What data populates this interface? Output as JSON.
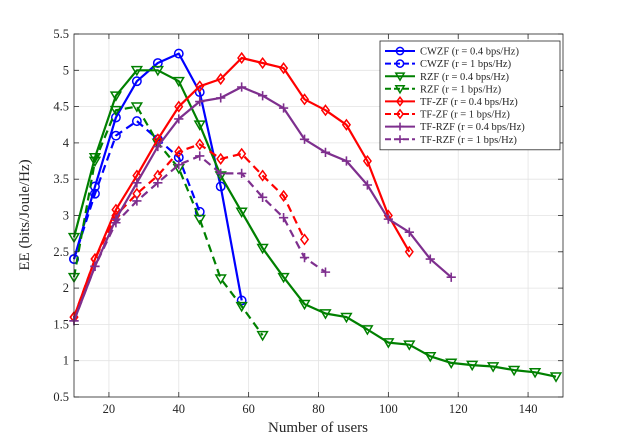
{
  "chart_data": {
    "type": "line",
    "title": "",
    "xlabel": "Number of users",
    "ylabel": "EE (bits/Joule/Hz)",
    "xlim": [
      10,
      150
    ],
    "ylim": [
      0.5,
      5.5
    ],
    "xticks": [
      20,
      40,
      60,
      80,
      100,
      120,
      140
    ],
    "xtick_labels": [
      "20",
      "40",
      "60",
      "80",
      "100",
      "120",
      "140"
    ],
    "yticks": [
      0.5,
      1,
      1.5,
      2,
      2.5,
      3,
      3.5,
      4,
      4.5,
      5,
      5.5
    ],
    "ytick_labels": [
      "0.5",
      "1",
      "1.5",
      "2",
      "2.5",
      "3",
      "3.5",
      "4",
      "4.5",
      "5",
      "5.5"
    ],
    "grid": true,
    "legend_position": "top-right",
    "series": [
      {
        "name": "CWZF (r = 0.4 bps/Hz)",
        "color": "#0000ff",
        "dash": "solid",
        "marker": "circle",
        "x": [
          10,
          16,
          22,
          28,
          34,
          40,
          46,
          52,
          58
        ],
        "y": [
          2.4,
          3.4,
          4.35,
          4.85,
          5.1,
          5.23,
          4.7,
          3.4,
          1.83
        ]
      },
      {
        "name": "CWZF (r = 1 bps/Hz)",
        "color": "#0000ff",
        "dash": "dashed",
        "marker": "circle",
        "x": [
          10,
          16,
          22,
          28,
          34,
          40,
          46
        ],
        "y": [
          2.4,
          3.3,
          4.1,
          4.3,
          4.05,
          3.8,
          3.05
        ]
      },
      {
        "name": "RZF (r = 0.4 bps/Hz)",
        "color": "#008000",
        "dash": "solid",
        "marker": "triangle-down",
        "x": [
          10,
          16,
          22,
          28,
          34,
          40,
          46,
          52,
          58,
          64,
          70,
          76,
          82,
          88,
          94,
          100,
          106,
          112,
          118,
          124,
          130,
          136,
          142,
          148
        ],
        "y": [
          2.7,
          3.8,
          4.65,
          5.0,
          5.0,
          4.85,
          4.25,
          3.55,
          3.05,
          2.55,
          2.15,
          1.78,
          1.65,
          1.6,
          1.43,
          1.25,
          1.22,
          1.06,
          0.97,
          0.94,
          0.92,
          0.87,
          0.84,
          0.78
        ]
      },
      {
        "name": "RZF (r = 1 bps/Hz)",
        "color": "#008000",
        "dash": "dashed",
        "marker": "triangle-down",
        "x": [
          10,
          16,
          22,
          28,
          34,
          40,
          46,
          52,
          58,
          64
        ],
        "y": [
          2.15,
          3.75,
          4.45,
          4.5,
          4.0,
          3.65,
          2.95,
          2.13,
          1.75,
          1.35
        ]
      },
      {
        "name": "TF-ZF (r = 0.4 bps/Hz)",
        "color": "#ff0000",
        "dash": "solid",
        "marker": "diamond",
        "x": [
          10,
          16,
          22,
          28,
          34,
          40,
          46,
          52,
          58,
          64,
          70,
          76,
          82,
          88,
          94,
          100,
          106
        ],
        "y": [
          1.6,
          2.4,
          3.08,
          3.55,
          4.05,
          4.5,
          4.78,
          4.88,
          5.17,
          5.1,
          5.03,
          4.6,
          4.45,
          4.25,
          3.75,
          3.0,
          2.5
        ]
      },
      {
        "name": "TF-ZF (r = 1 bps/Hz)",
        "color": "#ff0000",
        "dash": "dashed",
        "marker": "diamond",
        "x": [
          10,
          16,
          22,
          28,
          34,
          40,
          46,
          52,
          58,
          64,
          70,
          76
        ],
        "y": [
          1.6,
          2.4,
          3.0,
          3.3,
          3.55,
          3.88,
          3.98,
          3.78,
          3.85,
          3.55,
          3.27,
          2.67
        ]
      },
      {
        "name": "TF-RZF (r = 0.4 bps/Hz)",
        "color": "#7e2f8e",
        "dash": "solid",
        "marker": "plus",
        "x": [
          10,
          16,
          22,
          28,
          34,
          40,
          46,
          52,
          58,
          64,
          70,
          76,
          82,
          88,
          94,
          100,
          106,
          112,
          118
        ],
        "y": [
          1.55,
          2.3,
          2.95,
          3.45,
          3.95,
          4.33,
          4.57,
          4.62,
          4.77,
          4.65,
          4.48,
          4.05,
          3.87,
          3.75,
          3.42,
          2.95,
          2.77,
          2.4,
          2.15
        ]
      },
      {
        "name": "TF-RZF (r = 1 bps/Hz)",
        "color": "#7e2f8e",
        "dash": "dashed",
        "marker": "plus",
        "x": [
          10,
          16,
          22,
          28,
          34,
          40,
          46,
          52,
          58,
          64,
          70,
          76,
          82
        ],
        "y": [
          1.55,
          2.3,
          2.9,
          3.2,
          3.45,
          3.7,
          3.82,
          3.58,
          3.58,
          3.25,
          2.97,
          2.42,
          2.22
        ]
      }
    ]
  }
}
